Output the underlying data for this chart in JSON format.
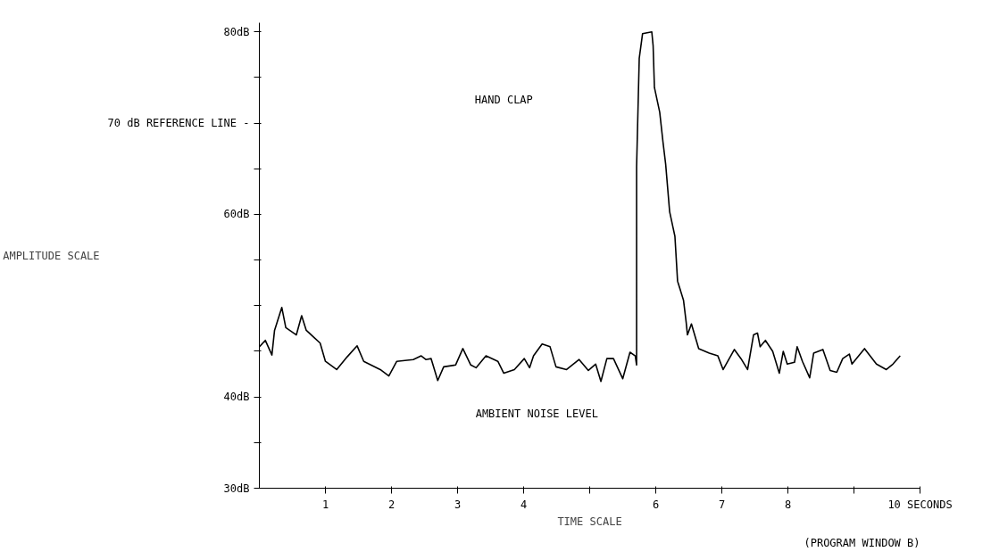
{
  "chart_data": {
    "type": "line",
    "xlabel": "TIME SCALE",
    "ylabel": "AMPLITUDE SCALE",
    "x": [
      0,
      0.09,
      0.19,
      0.23,
      0.34,
      0.4,
      0.56,
      0.64,
      0.71,
      0.83,
      0.92,
      1.0,
      1.17,
      1.33,
      1.48,
      1.58,
      1.83,
      1.96,
      2.08,
      2.33,
      2.45,
      2.52,
      2.6,
      2.7,
      2.79,
      2.97,
      3.08,
      3.2,
      3.28,
      3.43,
      3.61,
      3.7,
      3.86,
      4.01,
      4.09,
      4.15,
      4.28,
      4.4,
      4.49,
      4.65,
      4.84,
      4.98,
      5.09,
      5.17,
      5.26,
      5.36,
      5.5,
      5.61,
      5.69,
      5.71,
      5.71,
      5.75,
      5.8,
      5.94,
      5.96,
      5.98,
      6.06,
      6.11,
      6.15,
      6.21,
      6.29,
      6.33,
      6.42,
      6.46,
      6.48,
      6.54,
      6.65,
      6.81,
      6.94,
      7.02,
      7.19,
      7.29,
      7.39,
      7.48,
      7.54,
      7.58,
      7.66,
      7.77,
      7.87,
      7.93,
      7.99,
      8.1,
      8.14,
      8.22,
      8.33,
      8.39,
      8.53,
      8.64,
      8.74,
      8.83,
      8.93,
      8.97,
      9.16,
      9.34,
      9.49,
      9.59,
      9.7
    ],
    "series": [
      {
        "color": "#000000",
        "values": [
          45.5,
          46.2,
          44.6,
          47.3,
          49.8,
          47.6,
          46.8,
          48.9,
          47.3,
          46.5,
          45.9,
          43.9,
          43.0,
          44.4,
          45.6,
          43.9,
          43.0,
          42.3,
          43.9,
          44.1,
          44.5,
          44.1,
          44.2,
          41.8,
          43.3,
          43.5,
          45.3,
          43.5,
          43.2,
          44.5,
          43.9,
          42.6,
          43.0,
          44.2,
          43.2,
          44.5,
          45.8,
          45.5,
          43.3,
          43.0,
          44.1,
          42.9,
          43.6,
          41.7,
          44.2,
          44.2,
          42.0,
          44.9,
          44.5,
          43.5,
          65.2,
          77.1,
          79.8,
          80.0,
          78.5,
          73.9,
          71.2,
          67.9,
          65.5,
          60.3,
          57.6,
          52.7,
          50.6,
          48.2,
          46.8,
          48.0,
          45.3,
          44.8,
          44.5,
          43.0,
          45.2,
          44.2,
          43.0,
          46.8,
          47.0,
          45.5,
          46.2,
          45.0,
          42.6,
          45.0,
          43.6,
          43.8,
          45.5,
          43.9,
          42.1,
          44.8,
          45.2,
          42.9,
          42.7,
          44.2,
          44.7,
          43.6,
          45.3,
          43.6,
          43.0,
          43.6,
          44.5
        ]
      }
    ],
    "xlim": [
      0,
      10
    ],
    "ylim": [
      30,
      81
    ],
    "xticks": [
      1,
      2,
      3,
      4,
      {
        "value": 5,
        "label": null
      },
      6,
      7,
      8,
      {
        "value": 9,
        "label": null
      },
      {
        "value": 10,
        "label": "10 SECONDS"
      }
    ],
    "yticks": [
      {
        "value": 30,
        "label": "30dB"
      },
      {
        "value": 35,
        "label": null
      },
      {
        "value": 40,
        "label": "40dB"
      },
      {
        "value": 45,
        "label": null
      },
      {
        "value": 50,
        "label": null
      },
      {
        "value": 55,
        "label": null
      },
      {
        "value": 60,
        "label": "60dB"
      },
      {
        "value": 65,
        "label": null
      },
      {
        "value": 70,
        "label": "70 dB REFERENCE LINE -"
      },
      {
        "value": 75,
        "label": null
      },
      {
        "value": 80,
        "label": "80dB"
      }
    ],
    "annotations": [
      "HAND CLAP",
      "AMBIENT NOISE LEVEL",
      "(PROGRAM WINDOW B)"
    ],
    "grid": false,
    "marker": "none",
    "line_style": "solid"
  }
}
